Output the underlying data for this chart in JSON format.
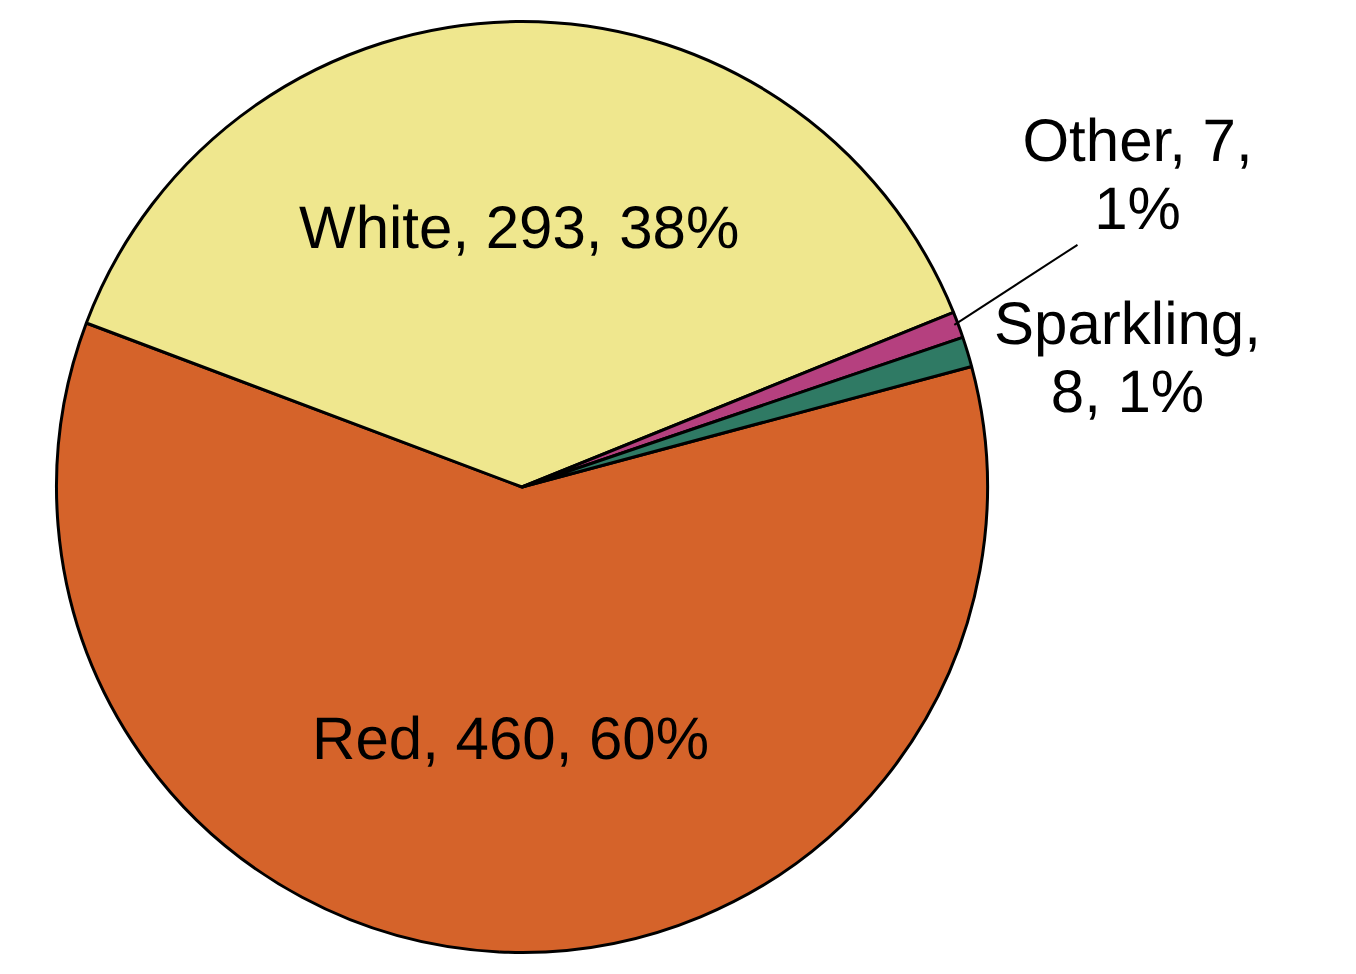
{
  "chart_data": {
    "type": "pie",
    "categories": [
      "Red",
      "White",
      "Other",
      "Sparkling"
    ],
    "values": [
      460,
      293,
      7,
      8
    ],
    "colors": [
      "#d5632a",
      "#efe78e",
      "#b5407f",
      "#2f7a64"
    ],
    "value_labels": [
      ", 460, 60%",
      ", 293, 38%",
      ", 7, 1%",
      ", 8, 1%"
    ],
    "legend": false
  }
}
